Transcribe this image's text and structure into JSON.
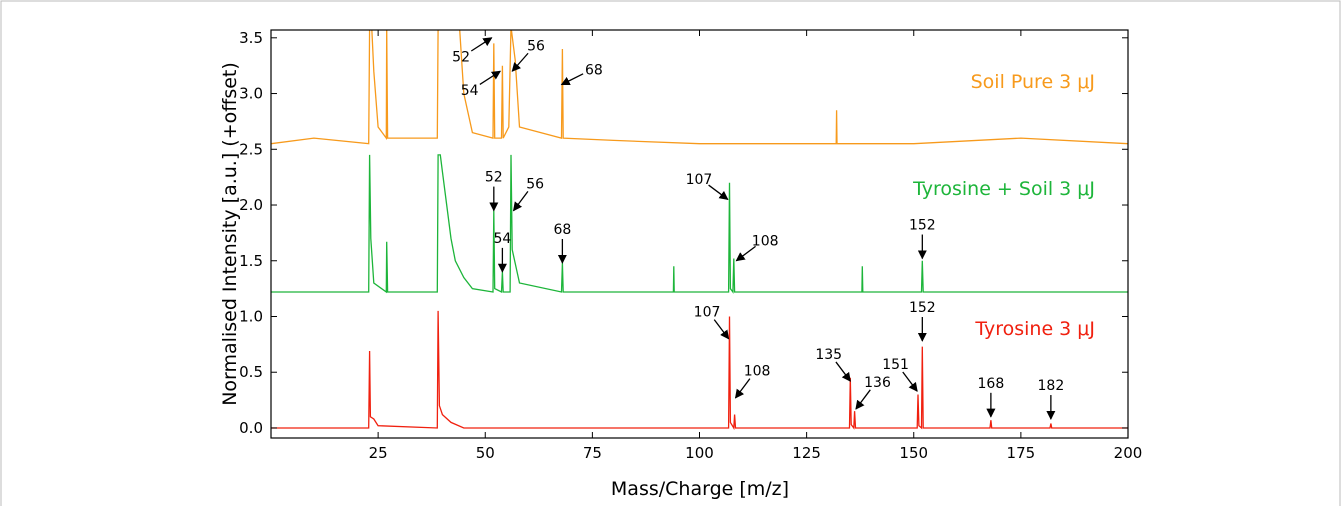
{
  "chart_data": {
    "type": "line",
    "x_label": "Mass/Charge [m/z]",
    "y_label": "Normalised Intensity [a.u.] (+offset)",
    "xlim": [
      0,
      200
    ],
    "xticks": [
      25,
      50,
      75,
      100,
      125,
      150,
      175,
      200
    ],
    "ylim": [
      -0.09,
      3.57
    ],
    "yticks": [
      {
        "value": 0,
        "label": "0.0"
      },
      0.5,
      {
        "value": 1,
        "label": "1.0"
      },
      1.5,
      {
        "value": 2,
        "label": "2.0"
      },
      2.5,
      {
        "value": 3,
        "label": "3.0"
      },
      3.5
    ],
    "series": [
      {
        "name": "Tyrosine 3 μJ",
        "color": "#f0200f",
        "x": [
          0,
          22.8,
          23,
          23.2,
          24,
          25,
          38.8,
          39,
          39.3,
          40,
          42,
          45,
          106.8,
          107,
          107.2,
          108,
          108.2,
          108.4,
          135,
          135.2,
          135.4,
          136,
          136.2,
          136.4,
          150.8,
          151,
          151.2,
          151.8,
          152,
          152.2,
          167.8,
          168,
          168.2,
          181.8,
          182,
          182.2,
          200
        ],
        "values": [
          0,
          0,
          0.69,
          0.1,
          0.08,
          0.02,
          0,
          1.05,
          0.2,
          0.12,
          0.05,
          0,
          0,
          1.0,
          0.05,
          0,
          0.12,
          0,
          0,
          0.45,
          0.03,
          0,
          0.15,
          0,
          0,
          0.3,
          0.02,
          0,
          0.73,
          0,
          0,
          0.07,
          0,
          0,
          0.04,
          0,
          0
        ],
        "annotations": [
          {
            "text": "107",
            "x": 106.8,
            "y": 0.8
          },
          {
            "text": "108",
            "x": 108.4,
            "y": 0.27
          },
          {
            "text": "135",
            "x": 135.2,
            "y": 0.42
          },
          {
            "text": "136",
            "x": 136.5,
            "y": 0.17
          },
          {
            "text": "151",
            "x": 150.8,
            "y": 0.33
          },
          {
            "text": "152",
            "x": 152,
            "y": 0.78
          },
          {
            "text": "168",
            "x": 168,
            "y": 0.1
          },
          {
            "text": "182",
            "x": 182,
            "y": 0.08
          }
        ]
      },
      {
        "name": "Tyrosine + Soil 3 μJ",
        "color": "#1db53a",
        "x": [
          0,
          22.8,
          23,
          23.3,
          24,
          26.9,
          27,
          27.2,
          38.8,
          39,
          39.5,
          40,
          41,
          42,
          43,
          45,
          47,
          51.8,
          52,
          52.2,
          53.8,
          54,
          54.2,
          55.8,
          56,
          56.3,
          58,
          67.8,
          68,
          68.2,
          93.9,
          94,
          94.1,
          106.8,
          107,
          107.2,
          107.8,
          108,
          108.2,
          137.9,
          138,
          138.1,
          151.8,
          152,
          152.2,
          200
        ],
        "values": [
          1.22,
          1.22,
          2.45,
          1.7,
          1.3,
          1.22,
          1.67,
          1.22,
          1.22,
          2.45,
          2.45,
          2.3,
          2.0,
          1.7,
          1.5,
          1.35,
          1.25,
          1.22,
          1.95,
          1.25,
          1.22,
          1.4,
          1.22,
          1.22,
          2.45,
          1.6,
          1.3,
          1.22,
          1.48,
          1.22,
          1.22,
          1.45,
          1.22,
          1.22,
          2.2,
          1.25,
          1.22,
          1.52,
          1.22,
          1.22,
          1.45,
          1.22,
          1.22,
          1.5,
          1.22,
          1.22
        ],
        "annotations": [
          {
            "text": "52",
            "x": 52,
            "y": 1.95
          },
          {
            "text": "54",
            "x": 54,
            "y": 1.4
          },
          {
            "text": "56",
            "x": 56.6,
            "y": 1.95
          },
          {
            "text": "68",
            "x": 68,
            "y": 1.48
          },
          {
            "text": "107",
            "x": 106.6,
            "y": 2.05
          },
          {
            "text": "108",
            "x": 108.6,
            "y": 1.5
          },
          {
            "text": "152",
            "x": 152,
            "y": 1.52
          }
        ]
      },
      {
        "name": "Soil Pure 3 μJ",
        "color": "#f79a1c",
        "x": [
          0,
          10,
          22.8,
          23,
          23.5,
          24,
          25,
          26.9,
          27,
          27.2,
          38.8,
          39,
          42,
          44,
          45,
          47,
          51.8,
          52,
          52.2,
          53.8,
          54,
          54.2,
          55.5,
          56,
          57,
          58,
          67.8,
          68,
          68.2,
          80,
          100,
          125,
          131.9,
          132,
          132.1,
          150,
          175,
          200
        ],
        "values": [
          2.55,
          2.6,
          2.55,
          3.6,
          3.6,
          3.2,
          2.7,
          2.6,
          3.6,
          2.6,
          2.6,
          3.6,
          3.6,
          3.6,
          3.0,
          2.65,
          2.6,
          3.45,
          2.6,
          2.6,
          3.25,
          2.6,
          2.7,
          3.6,
          3.3,
          2.7,
          2.6,
          3.4,
          2.6,
          2.58,
          2.55,
          2.55,
          2.55,
          2.85,
          2.55,
          2.55,
          2.6,
          2.55
        ],
        "annotations": [
          {
            "text": "52",
            "x": 51.5,
            "y": 3.5
          },
          {
            "text": "54",
            "x": 53.5,
            "y": 3.2
          },
          {
            "text": "56",
            "x": 56.3,
            "y": 3.2
          },
          {
            "text": "68",
            "x": 67.8,
            "y": 3.08
          }
        ]
      }
    ]
  }
}
